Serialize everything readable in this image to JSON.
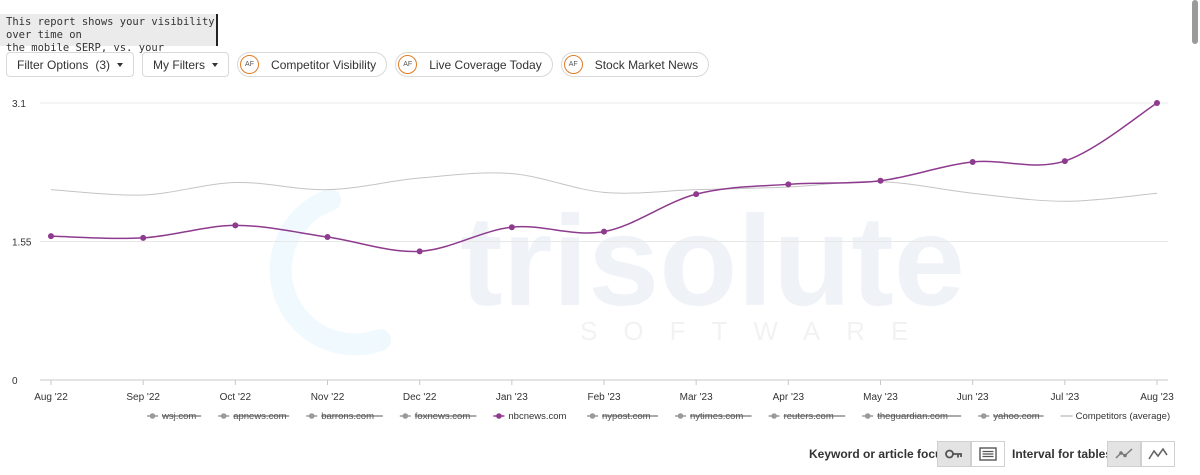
{
  "tooltip": {
    "line1": "This report shows your visibility over time on",
    "line2": "the mobile SERP, vs. your competitors."
  },
  "filters": {
    "filter_options_label": "Filter Options",
    "filter_options_count": "(3)",
    "my_filters_label": "My Filters",
    "chips": [
      {
        "badge": "AF",
        "label": "Competitor Visibility"
      },
      {
        "badge": "AF",
        "label": "Live Coverage Today"
      },
      {
        "badge": "AF",
        "label": "Stock Market News"
      }
    ]
  },
  "watermark": {
    "main": "trisolute",
    "sub": "SOFTWARE"
  },
  "chart_data": {
    "type": "line",
    "categories": [
      "Aug '22",
      "Sep '22",
      "Oct '22",
      "Nov '22",
      "Dec '22",
      "Jan '23",
      "Feb '23",
      "Mar '23",
      "Apr '23",
      "May '23",
      "Jun '23",
      "Jul '23",
      "Aug '23"
    ],
    "ylim": [
      0,
      3.1
    ],
    "yticks": [
      "0",
      "1.55",
      "3.1"
    ],
    "grid": true,
    "legend_position": "bottom",
    "series": [
      {
        "name": "nbcnews.com",
        "color": "#8e3a8e",
        "markers": true,
        "values": [
          1.61,
          1.59,
          1.73,
          1.6,
          1.44,
          1.71,
          1.66,
          2.08,
          2.19,
          2.23,
          2.44,
          2.45,
          3.1
        ]
      },
      {
        "name": "Competitors (average)",
        "color": "#c4c4c4",
        "markers": false,
        "values": [
          2.13,
          2.07,
          2.21,
          2.13,
          2.26,
          2.31,
          2.1,
          2.13,
          2.16,
          2.22,
          2.09,
          2.0,
          2.09
        ]
      }
    ],
    "legend": [
      {
        "label": "wsj.com",
        "hidden": true
      },
      {
        "label": "apnews.com",
        "hidden": true
      },
      {
        "label": "barrons.com",
        "hidden": true
      },
      {
        "label": "foxnews.com",
        "hidden": true
      },
      {
        "label": "nbcnews.com",
        "hidden": false,
        "color": "#8e3a8e"
      },
      {
        "label": "nypost.com",
        "hidden": true
      },
      {
        "label": "nytimes.com",
        "hidden": true
      },
      {
        "label": "reuters.com",
        "hidden": true
      },
      {
        "label": "theguardian.com",
        "hidden": true
      },
      {
        "label": "yahoo.com",
        "hidden": true
      },
      {
        "label": "Competitors (average)",
        "hidden": false,
        "color": "#c4c4c4",
        "line_only": true
      }
    ]
  },
  "bottom": {
    "focus_label": "Keyword or article focus:",
    "focus_icons": [
      "key-icon",
      "article-icon"
    ],
    "interval_label": "Interval for tables:",
    "interval_icons": [
      "points-line-icon",
      "line-icon"
    ]
  }
}
